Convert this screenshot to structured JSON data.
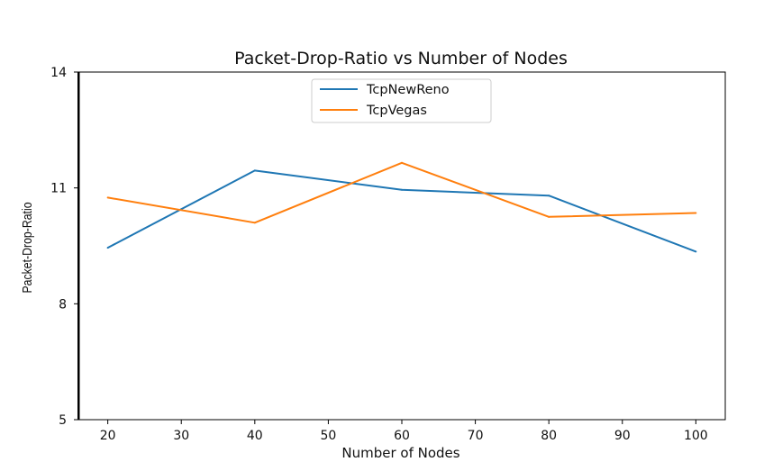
{
  "chart_data": {
    "type": "line",
    "title": "Packet-Drop-Ratio vs Number of Nodes",
    "xlabel": "Number of Nodes",
    "ylabel": "Packet-Drop-Ratio",
    "x": [
      20,
      40,
      60,
      80,
      100
    ],
    "xticks": [
      "20",
      "30",
      "40",
      "50",
      "60",
      "70",
      "80",
      "90",
      "100"
    ],
    "xlim": [
      16,
      104
    ],
    "yticks": [
      "5",
      "8",
      "11",
      "14"
    ],
    "ylim": [
      5,
      14
    ],
    "grid": false,
    "legend_position": "upper center",
    "series": [
      {
        "name": "TcpNewReno",
        "color": "#1f77b4",
        "values": [
          9.45,
          11.45,
          10.95,
          10.8,
          9.35
        ]
      },
      {
        "name": "TcpVegas",
        "color": "#ff7f0e",
        "values": [
          10.75,
          10.1,
          11.65,
          10.25,
          10.35
        ]
      }
    ]
  }
}
